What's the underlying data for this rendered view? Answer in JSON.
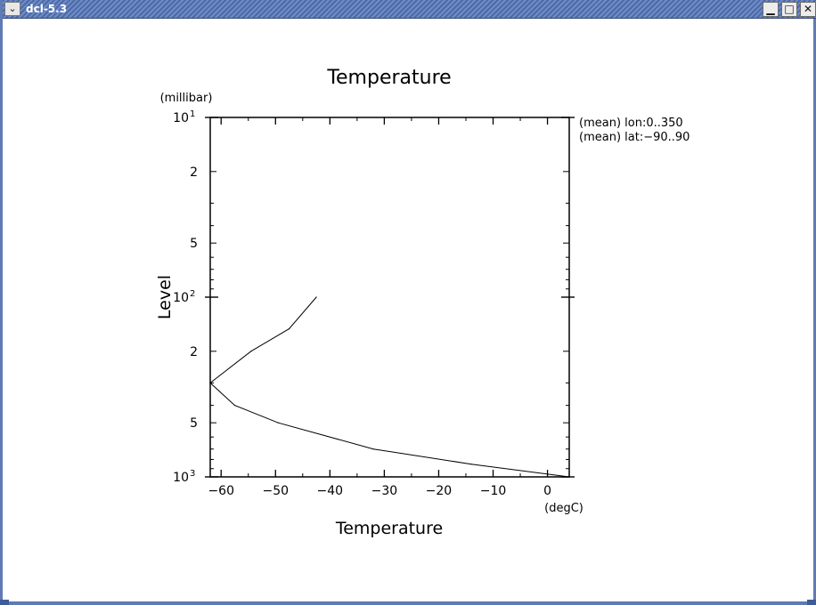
{
  "window": {
    "title": "dcl-5.3",
    "menu_icon": "chevron-down-icon",
    "minimize_glyph": "▁",
    "maximize_glyph": "□",
    "close_glyph": "✕"
  },
  "chart_data": {
    "type": "line",
    "title": "Temperature",
    "xlabel": "Temperature",
    "xunit": "(degC)",
    "ylabel": "Level",
    "yunit": "(millibar)",
    "xlim": [
      -62,
      4
    ],
    "ylim": [
      1000,
      10
    ],
    "yscale": "log",
    "x_ticks": [
      -60,
      -50,
      -40,
      -30,
      -20,
      -10,
      0
    ],
    "x_tick_labels": [
      "−60",
      "−50",
      "−40",
      "−30",
      "−20",
      "−10",
      "0"
    ],
    "y_major_ticks": [
      {
        "value": 10,
        "base": "10",
        "exp": "1"
      },
      {
        "value": 100,
        "base": "10",
        "exp": "2"
      },
      {
        "value": 1000,
        "base": "10",
        "exp": "3"
      }
    ],
    "y_minor_labels": [
      {
        "value": 20,
        "label": "2"
      },
      {
        "value": 50,
        "label": "5"
      },
      {
        "value": 200,
        "label": "2"
      },
      {
        "value": 500,
        "label": "5"
      }
    ],
    "annotations": [
      "(mean) lon:0..350",
      "(mean) lat:−90..90"
    ],
    "grid": false,
    "series": [
      {
        "points": [
          [
            4.0,
            1000
          ],
          [
            -14.0,
            850
          ],
          [
            -32.0,
            700
          ],
          [
            -49.5,
            500
          ],
          [
            -57.5,
            400
          ],
          [
            -62.0,
            300
          ],
          [
            -54.5,
            200
          ],
          [
            -47.5,
            150
          ],
          [
            -42.5,
            100
          ]
        ]
      }
    ]
  }
}
